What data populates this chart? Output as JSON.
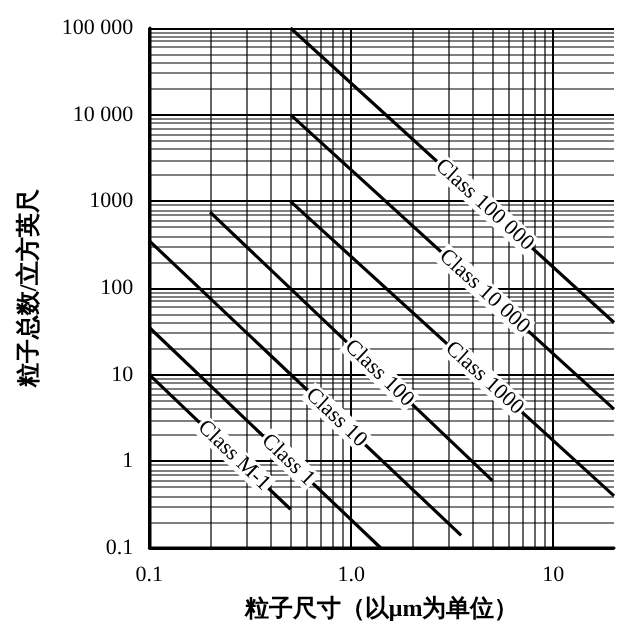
{
  "chart_data": {
    "type": "line",
    "xlabel": "粒子尺寸（以μm为单位）",
    "ylabel": "粒子总数/立方英尺",
    "log": "xy",
    "grid": true,
    "legend": false,
    "marker": "none",
    "line_style": "solid",
    "xlim": [
      0.1,
      20
    ],
    "xticks": [
      0.1,
      {
        "value": 1,
        "label": "1.0"
      },
      10
    ],
    "ylim": [
      0.1,
      100000
    ],
    "yticks": [
      0.1,
      1,
      10,
      100,
      1000,
      {
        "value": 10000,
        "label": "10 000"
      },
      {
        "value": 100000,
        "label": "100 000"
      }
    ],
    "series": [
      {
        "name": "Class 100 000",
        "color": "#000000",
        "x": [
          0.5,
          20
        ],
        "values": [
          100000,
          40
        ]
      },
      {
        "name": "Class 10 000",
        "color": "#000000",
        "x": [
          0.5,
          20
        ],
        "values": [
          10000,
          4
        ]
      },
      {
        "name": "Class 1000",
        "color": "#000000",
        "x": [
          0.5,
          20
        ],
        "values": [
          1000,
          0.4
        ]
      },
      {
        "name": "Class 100",
        "color": "#000000",
        "x": [
          0.2,
          5
        ],
        "values": [
          750,
          0.6
        ]
      },
      {
        "name": "Class 10",
        "color": "#000000",
        "x": [
          0.1,
          3.5
        ],
        "values": [
          350,
          0.14
        ]
      },
      {
        "name": "Class 1",
        "color": "#000000",
        "x": [
          0.1,
          1.4
        ],
        "values": [
          35,
          0.1
        ]
      },
      {
        "name": "Class M-1",
        "color": "#000000",
        "x": [
          0.1,
          0.5
        ],
        "values": [
          10,
          0.28
        ]
      }
    ]
  }
}
